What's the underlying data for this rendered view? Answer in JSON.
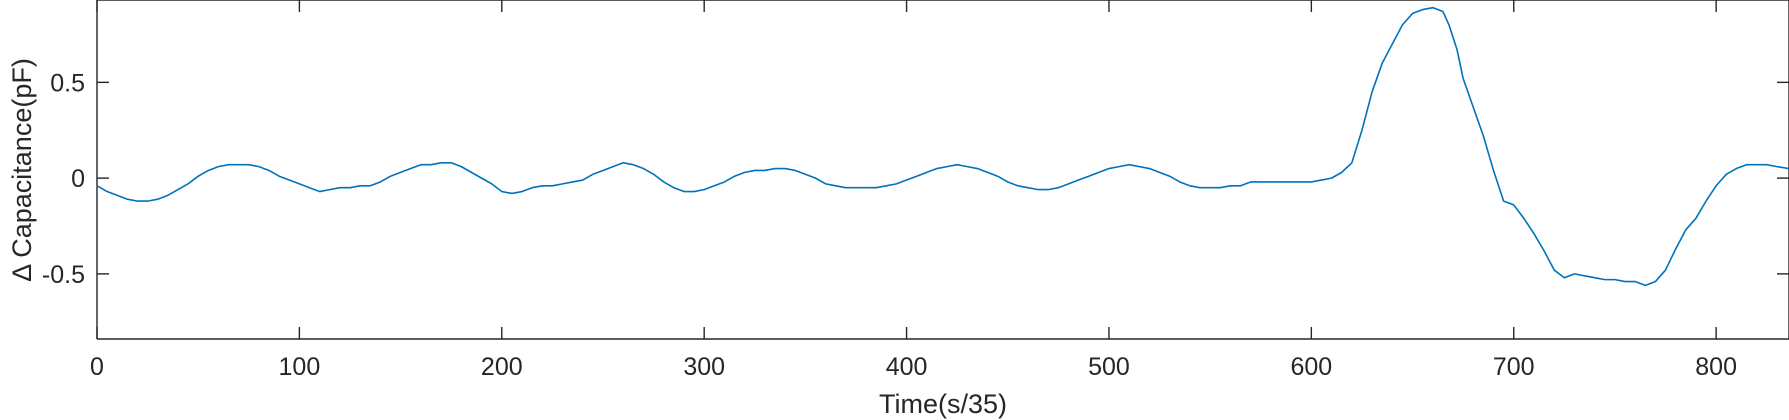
{
  "chart_data": {
    "type": "line",
    "title": "",
    "xlabel": "Time(s/35)",
    "ylabel": "Δ Capacitance(pF)",
    "xlim": [
      0,
      836
    ],
    "ylim": [
      -0.84,
      0.93
    ],
    "xticks": [
      0,
      100,
      200,
      300,
      400,
      500,
      600,
      700,
      800
    ],
    "yticks": [
      -0.5,
      0,
      0.5
    ],
    "ytick_labels": [
      "-0.5",
      "0",
      "0.5"
    ],
    "grid": false,
    "box": true,
    "series": [
      {
        "color": "#0072BD",
        "x": [
          0,
          5,
          10,
          15,
          20,
          25,
          30,
          35,
          40,
          45,
          50,
          55,
          60,
          65,
          70,
          75,
          80,
          85,
          90,
          95,
          100,
          105,
          110,
          115,
          120,
          125,
          130,
          135,
          140,
          145,
          150,
          155,
          160,
          165,
          170,
          175,
          180,
          185,
          190,
          195,
          200,
          205,
          210,
          215,
          220,
          225,
          230,
          235,
          240,
          245,
          250,
          255,
          260,
          265,
          270,
          275,
          280,
          285,
          290,
          295,
          300,
          305,
          310,
          315,
          320,
          325,
          330,
          335,
          340,
          345,
          350,
          355,
          360,
          365,
          370,
          375,
          380,
          385,
          390,
          395,
          400,
          405,
          410,
          415,
          420,
          425,
          430,
          435,
          440,
          445,
          450,
          455,
          460,
          465,
          470,
          475,
          480,
          485,
          490,
          495,
          500,
          505,
          510,
          515,
          520,
          525,
          530,
          535,
          540,
          545,
          550,
          555,
          560,
          565,
          570,
          575,
          580,
          585,
          590,
          595,
          600,
          605,
          610,
          615,
          620,
          625,
          630,
          635,
          640,
          645,
          650,
          655,
          660,
          665,
          668,
          672,
          675,
          680,
          685,
          690,
          695,
          700,
          705,
          710,
          715,
          720,
          725,
          730,
          735,
          740,
          745,
          750,
          755,
          760,
          765,
          770,
          775,
          780,
          785,
          790,
          795,
          800,
          805,
          810,
          815,
          820,
          825,
          830,
          836
        ],
        "y": [
          -0.04,
          -0.07,
          -0.09,
          -0.11,
          -0.12,
          -0.12,
          -0.11,
          -0.09,
          -0.06,
          -0.03,
          0.01,
          0.04,
          0.06,
          0.07,
          0.07,
          0.07,
          0.06,
          0.04,
          0.01,
          -0.01,
          -0.03,
          -0.05,
          -0.07,
          -0.06,
          -0.05,
          -0.05,
          -0.04,
          -0.04,
          -0.02,
          0.01,
          0.03,
          0.05,
          0.07,
          0.07,
          0.08,
          0.08,
          0.06,
          0.03,
          0.0,
          -0.03,
          -0.07,
          -0.08,
          -0.07,
          -0.05,
          -0.04,
          -0.04,
          -0.03,
          -0.02,
          -0.01,
          0.02,
          0.04,
          0.06,
          0.08,
          0.07,
          0.05,
          0.02,
          -0.02,
          -0.05,
          -0.07,
          -0.07,
          -0.06,
          -0.04,
          -0.02,
          0.01,
          0.03,
          0.04,
          0.04,
          0.05,
          0.05,
          0.04,
          0.02,
          0.0,
          -0.03,
          -0.04,
          -0.05,
          -0.05,
          -0.05,
          -0.05,
          -0.04,
          -0.03,
          -0.01,
          0.01,
          0.03,
          0.05,
          0.06,
          0.07,
          0.06,
          0.05,
          0.03,
          0.01,
          -0.02,
          -0.04,
          -0.05,
          -0.06,
          -0.06,
          -0.05,
          -0.03,
          -0.01,
          0.01,
          0.03,
          0.05,
          0.06,
          0.07,
          0.06,
          0.05,
          0.03,
          0.01,
          -0.02,
          -0.04,
          -0.05,
          -0.05,
          -0.05,
          -0.04,
          -0.04,
          -0.02,
          -0.02,
          -0.02,
          -0.02,
          -0.02,
          -0.02,
          -0.02,
          -0.01,
          0.0,
          0.03,
          0.08,
          0.25,
          0.45,
          0.6,
          0.7,
          0.8,
          0.86,
          0.88,
          0.89,
          0.87,
          0.8,
          0.67,
          0.52,
          0.37,
          0.22,
          0.04,
          -0.12,
          -0.14,
          -0.21,
          -0.29,
          -0.38,
          -0.48,
          -0.52,
          -0.5,
          -0.51,
          -0.52,
          -0.53,
          -0.53,
          -0.54,
          -0.54,
          -0.56,
          -0.54,
          -0.48,
          -0.37,
          -0.27,
          -0.21,
          -0.12,
          -0.04,
          0.02,
          0.05,
          0.07,
          0.07,
          0.07,
          0.06,
          0.05
        ]
      }
    ]
  }
}
